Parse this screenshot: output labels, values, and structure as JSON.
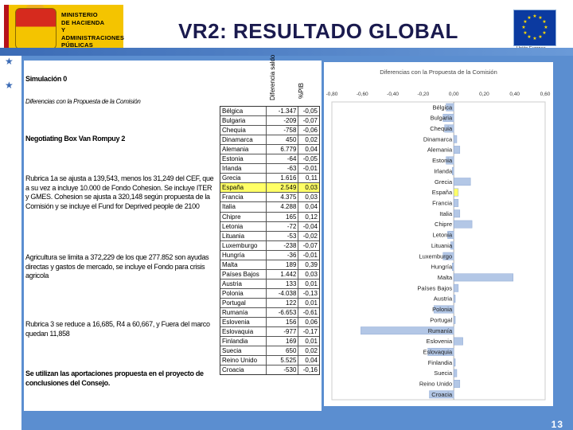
{
  "header": {
    "ministry_lines": [
      "MINISTERIO",
      "DE HACIENDA",
      "Y ADMINISTRACIONES",
      "PÚBLICAS"
    ],
    "title": "VR2: RESULTADO GLOBAL",
    "eu_caption": "Unión Europea"
  },
  "left": {
    "sim": "Simulación 0",
    "sim_sub": "Diferencias con la Propuesta de la Comisión",
    "nbox": "Negotiating Box Van Rompuy 2",
    "p1": "Rubrica 1a se ajusta a 139,543, menos los 31,249 del CEF, que a su vez a incluye 10.000 de Fondo Cohesion. Se incluye ITER y GMES. Cohesion se ajusta a 320,148 según propuesta de la Comisión y se incluye el Fund for Deprived people de 2100",
    "p2": "Agricultura se limita a 372,229 de los que 277.852 son ayudas directas y gastos de mercado, se incluye el Fondo para crisis agricola",
    "p3": "Rubrica 3 se reduce a 16,685, R4 a 60,667, y Fuera del marco quedan 11,858",
    "p4": "Se utilizan las aportaciones propuesta en el proyecto de conclusiones del Consejo."
  },
  "table": {
    "col_diff": "Diferencia saldo",
    "col_pib": "%PIB",
    "rows": [
      {
        "country": "Bélgica",
        "diff": "-1.347",
        "pib": "-0,05"
      },
      {
        "country": "Bulgaria",
        "diff": "-209",
        "pib": "-0,07"
      },
      {
        "country": "Chequia",
        "diff": "-758",
        "pib": "-0,06"
      },
      {
        "country": "Dinamarca",
        "diff": "450",
        "pib": "0,02"
      },
      {
        "country": "Alemania",
        "diff": "6.779",
        "pib": "0,04"
      },
      {
        "country": "Estonia",
        "diff": "-64",
        "pib": "-0,05"
      },
      {
        "country": "Irlanda",
        "diff": "-63",
        "pib": "-0,01"
      },
      {
        "country": "Grecia",
        "diff": "1.616",
        "pib": "0,11"
      },
      {
        "country": "España",
        "diff": "2.549",
        "pib": "0,03"
      },
      {
        "country": "Francia",
        "diff": "4.375",
        "pib": "0,03"
      },
      {
        "country": "Italia",
        "diff": "4.288",
        "pib": "0,04"
      },
      {
        "country": "Chipre",
        "diff": "165",
        "pib": "0,12"
      },
      {
        "country": "Letonia",
        "diff": "-72",
        "pib": "-0,04"
      },
      {
        "country": "Lituania",
        "diff": "-53",
        "pib": "-0,02"
      },
      {
        "country": "Luxemburgo",
        "diff": "-238",
        "pib": "-0,07"
      },
      {
        "country": "Hungría",
        "diff": "-36",
        "pib": "-0,01"
      },
      {
        "country": "Malta",
        "diff": "189",
        "pib": "0,39"
      },
      {
        "country": "Países Bajos",
        "diff": "1.442",
        "pib": "0,03"
      },
      {
        "country": "Austria",
        "diff": "133",
        "pib": "0,01"
      },
      {
        "country": "Polonia",
        "diff": "-4.038",
        "pib": "-0,13"
      },
      {
        "country": "Portugal",
        "diff": "122",
        "pib": "0,01"
      },
      {
        "country": "Rumanía",
        "diff": "-6.653",
        "pib": "-0,61"
      },
      {
        "country": "Eslovenia",
        "diff": "156",
        "pib": "0,06"
      },
      {
        "country": "Eslovaquia",
        "diff": "-977",
        "pib": "-0,17"
      },
      {
        "country": "Finlandia",
        "diff": "169",
        "pib": "0,01"
      },
      {
        "country": "Suecia",
        "diff": "650",
        "pib": "0,02"
      },
      {
        "country": "Reino Unido",
        "diff": "5.525",
        "pib": "0,04"
      },
      {
        "country": "Croacia",
        "diff": "-530",
        "pib": "-0,16"
      }
    ],
    "highlight_index": 8,
    "highlight_color": "#ffff66"
  },
  "chart_data": {
    "type": "bar",
    "title": "Diferencias con la Propuesta de la Comisión",
    "orientation": "horizontal",
    "xlim": [
      -0.8,
      0.6
    ],
    "xticks": [
      "-0,80",
      "-0,60",
      "-0,40",
      "-0,20",
      "0,00",
      "0,20",
      "0,40",
      "0,60"
    ],
    "categories": [
      "Bélgica",
      "Bulgaria",
      "Chequia",
      "Dinamarca",
      "Alemania",
      "Estonia",
      "Irlanda",
      "Grecia",
      "España",
      "Francia",
      "Italia",
      "Chipre",
      "Letonia",
      "Lituania",
      "Luxemburgo",
      "Hungría",
      "Malta",
      "Países Bajos",
      "Austria",
      "Polonia",
      "Portugal",
      "Rumanía",
      "Eslovenia",
      "Eslovaquia",
      "Finlandia",
      "Suecia",
      "Reino Unido",
      "Croacia"
    ],
    "values": [
      -0.05,
      -0.07,
      -0.06,
      0.02,
      0.04,
      -0.05,
      -0.01,
      0.11,
      0.03,
      0.03,
      0.04,
      0.12,
      -0.04,
      -0.02,
      -0.07,
      -0.01,
      0.39,
      0.03,
      0.01,
      -0.13,
      0.01,
      -0.61,
      0.06,
      -0.17,
      0.01,
      0.02,
      0.04,
      -0.16
    ],
    "bar_color": "#b3c7e6",
    "highlight_category": "España",
    "highlight_color": "#ffff66"
  },
  "footer": {
    "page_number": "13"
  }
}
